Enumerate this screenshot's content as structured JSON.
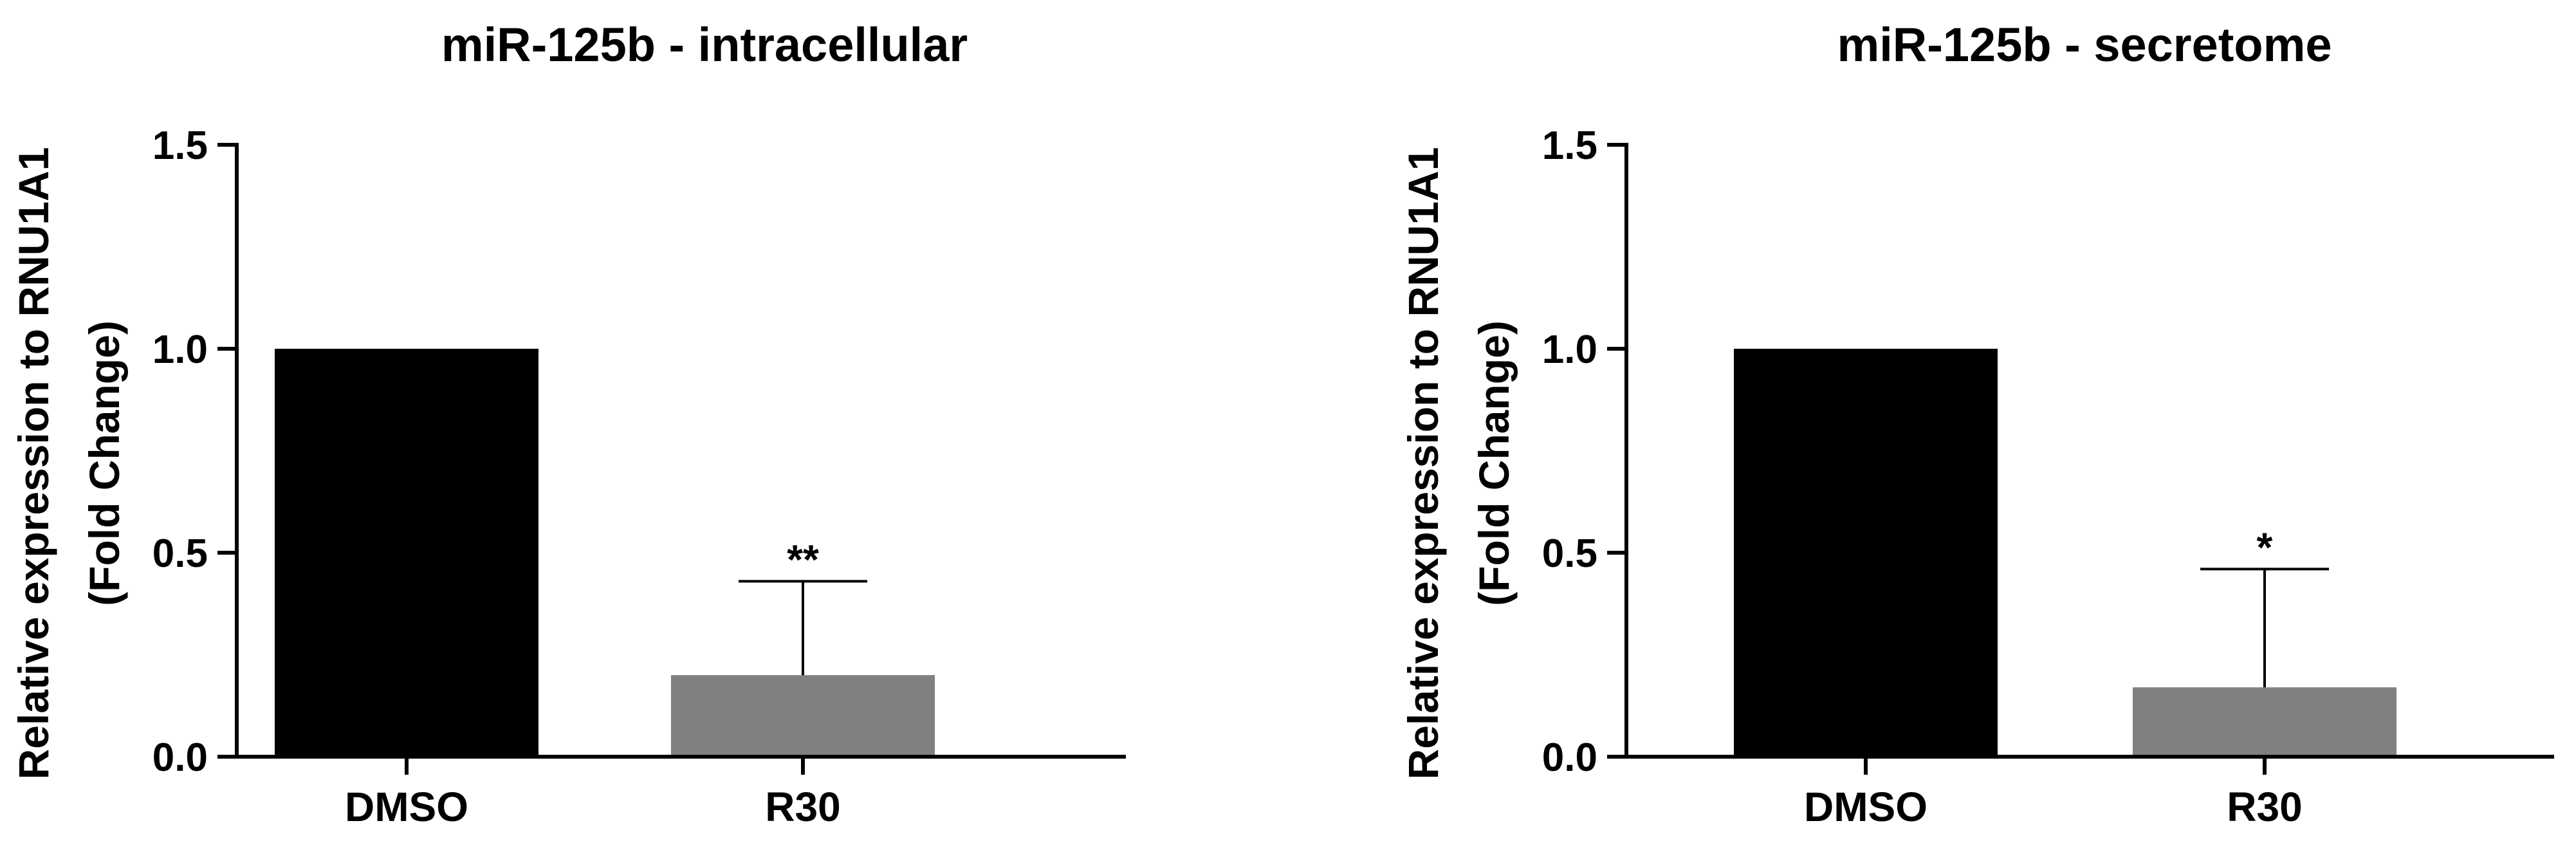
{
  "chart_data": [
    {
      "type": "bar",
      "title": "miR-125b - intracellular",
      "ylabel_line1": "Relative expression to RNU1A1",
      "ylabel_line2": "(Fold Change)",
      "xlabel": "",
      "categories": [
        "DMSO",
        "R30"
      ],
      "values": [
        1.0,
        0.2
      ],
      "error_upper": [
        null,
        0.43
      ],
      "significance": [
        "",
        "**"
      ],
      "bar_colors": [
        "#000000",
        "#808080"
      ],
      "ylim": [
        0,
        1.5
      ],
      "yticks": [
        0.0,
        0.5,
        1.0,
        1.5
      ],
      "ytick_labels": [
        "0.0",
        "0.5",
        "1.0",
        "1.5"
      ],
      "grid": false,
      "legend": "none"
    },
    {
      "type": "bar",
      "title": "miR-125b - secretome",
      "ylabel_line1": "Relative expression to RNU1A1",
      "ylabel_line2": "(Fold Change)",
      "xlabel": "",
      "categories": [
        "DMSO",
        "R30"
      ],
      "values": [
        1.0,
        0.17
      ],
      "error_upper": [
        null,
        0.46
      ],
      "significance": [
        "",
        "*"
      ],
      "bar_colors": [
        "#000000",
        "#808080"
      ],
      "ylim": [
        0,
        1.5
      ],
      "yticks": [
        0.0,
        0.5,
        1.0,
        1.5
      ],
      "ytick_labels": [
        "0.0",
        "0.5",
        "1.0",
        "1.5"
      ],
      "grid": false,
      "legend": "none"
    }
  ]
}
